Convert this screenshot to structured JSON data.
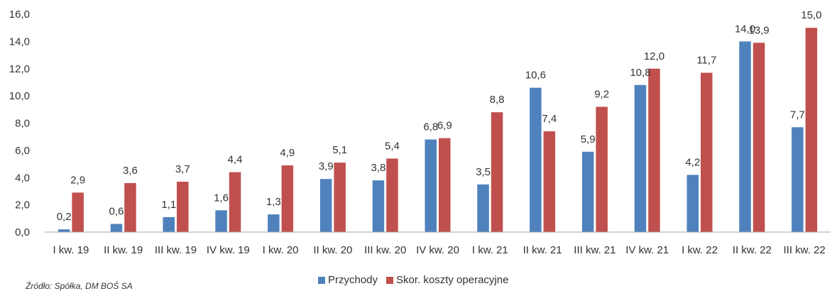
{
  "chart_data": {
    "type": "bar",
    "categories": [
      "I kw. 19",
      "II kw. 19",
      "III kw. 19",
      "IV kw. 19",
      "I kw. 20",
      "II kw. 20",
      "III kw. 20",
      "IV kw. 20",
      "I kw. 21",
      "II kw. 21",
      "III kw. 21",
      "IV kw. 21",
      "I kw. 22",
      "II kw. 22",
      "III kw. 22"
    ],
    "series": [
      {
        "name": "Przychody",
        "color": "#4F81BD",
        "values": [
          0.2,
          0.6,
          1.1,
          1.6,
          1.3,
          3.9,
          3.8,
          6.8,
          3.5,
          10.6,
          5.9,
          10.8,
          4.2,
          14.0,
          7.7
        ],
        "labels": [
          "0,2",
          "0,6",
          "1,1",
          "1,6",
          "1,3",
          "3,9",
          "3,8",
          "6,8",
          "3,5",
          "10,6",
          "5,9",
          "10,8",
          "4,2",
          "14,0",
          "7,7"
        ]
      },
      {
        "name": "Skor. koszty operacyjne",
        "color": "#C0504D",
        "values": [
          2.9,
          3.6,
          3.7,
          4.4,
          4.9,
          5.1,
          5.4,
          6.9,
          8.8,
          7.4,
          9.2,
          12.0,
          11.7,
          13.9,
          15.0
        ],
        "labels": [
          "2,9",
          "3,6",
          "3,7",
          "4,4",
          "4,9",
          "5,1",
          "5,4",
          "6,9",
          "8,8",
          "7,4",
          "9,2",
          "12,0",
          "11,7",
          "13,9",
          "15,0"
        ]
      }
    ],
    "ylim": [
      0,
      16
    ],
    "yticks": [
      "0,0",
      "2,0",
      "4,0",
      "6,0",
      "8,0",
      "10,0",
      "12,0",
      "14,0",
      "16,0"
    ],
    "grid": false,
    "legend_position": "bottom"
  },
  "source": "Źródło: Spółka, DM BOŚ SA"
}
